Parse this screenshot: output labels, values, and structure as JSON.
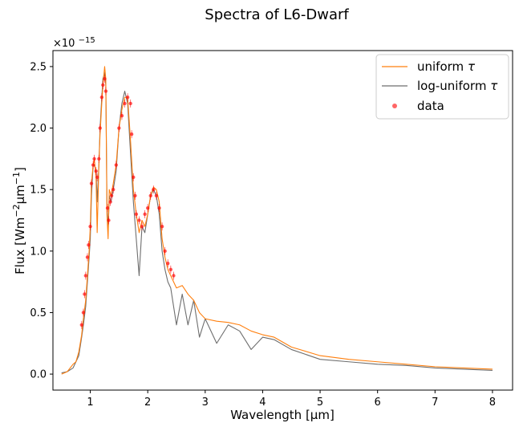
{
  "chart_data": {
    "type": "line",
    "title": "Spectra of L6-Dwarf",
    "xlabel": "Wavelength [μm]",
    "ylabel": "Flux [Wm",
    "ylabel_sup1": "−2",
    "ylabel_mid": "μm",
    "ylabel_sup2": "−1",
    "ylabel_end": "]",
    "offset_base": "×10",
    "offset_exp": "−15",
    "xlim": [
      0.35,
      8.35
    ],
    "ylim": [
      -0.13,
      2.63
    ],
    "x_ticks": [
      1,
      2,
      3,
      4,
      5,
      6,
      7,
      8
    ],
    "x_tick_labels": [
      "1",
      "2",
      "3",
      "4",
      "5",
      "6",
      "7",
      "8"
    ],
    "y_ticks": [
      0.0,
      0.5,
      1.0,
      1.5,
      2.0,
      2.5
    ],
    "y_tick_labels": [
      "0.0",
      "0.5",
      "1.0",
      "1.5",
      "2.0",
      "2.5"
    ],
    "grid": false,
    "legend_position": "top-right",
    "colors": {
      "uniform": "#ff7f0e",
      "loguniform": "#6e6e6e",
      "data": "#ff0000"
    },
    "series": [
      {
        "name": "uniform τ",
        "label_base": "uniform ",
        "label_tau": "τ",
        "style": "line",
        "x": [
          0.5,
          0.6,
          0.7,
          0.75,
          0.8,
          0.85,
          0.88,
          0.92,
          0.95,
          0.98,
          1.0,
          1.02,
          1.05,
          1.07,
          1.1,
          1.12,
          1.15,
          1.17,
          1.2,
          1.22,
          1.25,
          1.27,
          1.29,
          1.31,
          1.33,
          1.36,
          1.4,
          1.45,
          1.5,
          1.55,
          1.6,
          1.65,
          1.7,
          1.75,
          1.8,
          1.85,
          1.9,
          1.95,
          2.0,
          2.05,
          2.1,
          2.15,
          2.2,
          2.25,
          2.3,
          2.35,
          2.4,
          2.5,
          2.6,
          2.7,
          2.8,
          2.9,
          3.0,
          3.2,
          3.4,
          3.6,
          3.8,
          4.0,
          4.2,
          4.5,
          5.0,
          5.5,
          6.0,
          6.5,
          7.0,
          7.5,
          8.0
        ],
        "y": [
          0.0,
          0.02,
          0.08,
          0.1,
          0.18,
          0.32,
          0.45,
          0.6,
          0.8,
          1.0,
          1.2,
          1.55,
          1.7,
          1.75,
          1.6,
          1.15,
          1.7,
          1.95,
          2.2,
          2.35,
          2.5,
          2.4,
          1.3,
          1.1,
          1.5,
          1.45,
          1.55,
          1.7,
          2.0,
          2.15,
          2.25,
          2.25,
          1.9,
          1.5,
          1.3,
          1.15,
          1.25,
          1.2,
          1.3,
          1.45,
          1.52,
          1.5,
          1.4,
          1.1,
          0.95,
          0.85,
          0.8,
          0.7,
          0.72,
          0.65,
          0.6,
          0.5,
          0.45,
          0.43,
          0.42,
          0.4,
          0.35,
          0.32,
          0.3,
          0.22,
          0.15,
          0.12,
          0.1,
          0.08,
          0.06,
          0.05,
          0.04
        ]
      },
      {
        "name": "log-uniform τ",
        "label_base": "log-uniform ",
        "label_tau": "τ",
        "style": "line",
        "x": [
          0.5,
          0.6,
          0.7,
          0.75,
          0.8,
          0.85,
          0.88,
          0.92,
          0.95,
          0.98,
          1.0,
          1.02,
          1.05,
          1.07,
          1.1,
          1.12,
          1.15,
          1.17,
          1.2,
          1.22,
          1.25,
          1.27,
          1.29,
          1.31,
          1.33,
          1.36,
          1.4,
          1.45,
          1.5,
          1.55,
          1.6,
          1.65,
          1.7,
          1.75,
          1.8,
          1.85,
          1.9,
          1.95,
          2.0,
          2.05,
          2.1,
          2.15,
          2.2,
          2.25,
          2.3,
          2.35,
          2.4,
          2.5,
          2.6,
          2.7,
          2.8,
          2.9,
          3.0,
          3.2,
          3.4,
          3.6,
          3.8,
          4.0,
          4.2,
          4.5,
          5.0,
          5.5,
          6.0,
          6.5,
          7.0,
          7.5,
          8.0
        ],
        "y": [
          0.01,
          0.02,
          0.05,
          0.1,
          0.15,
          0.3,
          0.4,
          0.55,
          0.75,
          0.95,
          1.1,
          1.45,
          1.7,
          1.7,
          1.65,
          1.4,
          1.7,
          2.0,
          2.25,
          2.4,
          2.45,
          2.35,
          1.4,
          1.15,
          1.45,
          1.4,
          1.5,
          1.65,
          2.0,
          2.2,
          2.3,
          2.2,
          1.8,
          1.4,
          1.1,
          0.8,
          1.2,
          1.15,
          1.3,
          1.45,
          1.5,
          1.45,
          1.3,
          1.0,
          0.85,
          0.75,
          0.7,
          0.4,
          0.65,
          0.4,
          0.6,
          0.3,
          0.45,
          0.25,
          0.4,
          0.35,
          0.2,
          0.3,
          0.28,
          0.2,
          0.12,
          0.1,
          0.08,
          0.07,
          0.05,
          0.04,
          0.03
        ]
      },
      {
        "name": "data",
        "style": "scatter",
        "x": [
          0.85,
          0.88,
          0.9,
          0.92,
          0.95,
          0.97,
          1.0,
          1.02,
          1.05,
          1.07,
          1.1,
          1.12,
          1.15,
          1.17,
          1.2,
          1.22,
          1.25,
          1.27,
          1.3,
          1.32,
          1.35,
          1.37,
          1.4,
          1.45,
          1.5,
          1.55,
          1.6,
          1.65,
          1.7,
          1.72,
          1.75,
          1.78,
          1.8,
          1.85,
          1.9,
          1.95,
          2.0,
          2.05,
          2.1,
          2.15,
          2.2,
          2.25,
          2.3,
          2.35,
          2.4,
          2.45
        ],
        "y": [
          0.4,
          0.5,
          0.65,
          0.8,
          0.95,
          1.05,
          1.2,
          1.55,
          1.7,
          1.75,
          1.65,
          1.6,
          1.75,
          2.0,
          2.25,
          2.35,
          2.4,
          2.3,
          1.35,
          1.25,
          1.4,
          1.45,
          1.5,
          1.7,
          2.0,
          2.1,
          2.2,
          2.25,
          2.2,
          1.95,
          1.6,
          1.45,
          1.3,
          1.25,
          1.2,
          1.3,
          1.35,
          1.45,
          1.5,
          1.45,
          1.35,
          1.2,
          1.0,
          0.9,
          0.85,
          0.8
        ]
      }
    ]
  }
}
